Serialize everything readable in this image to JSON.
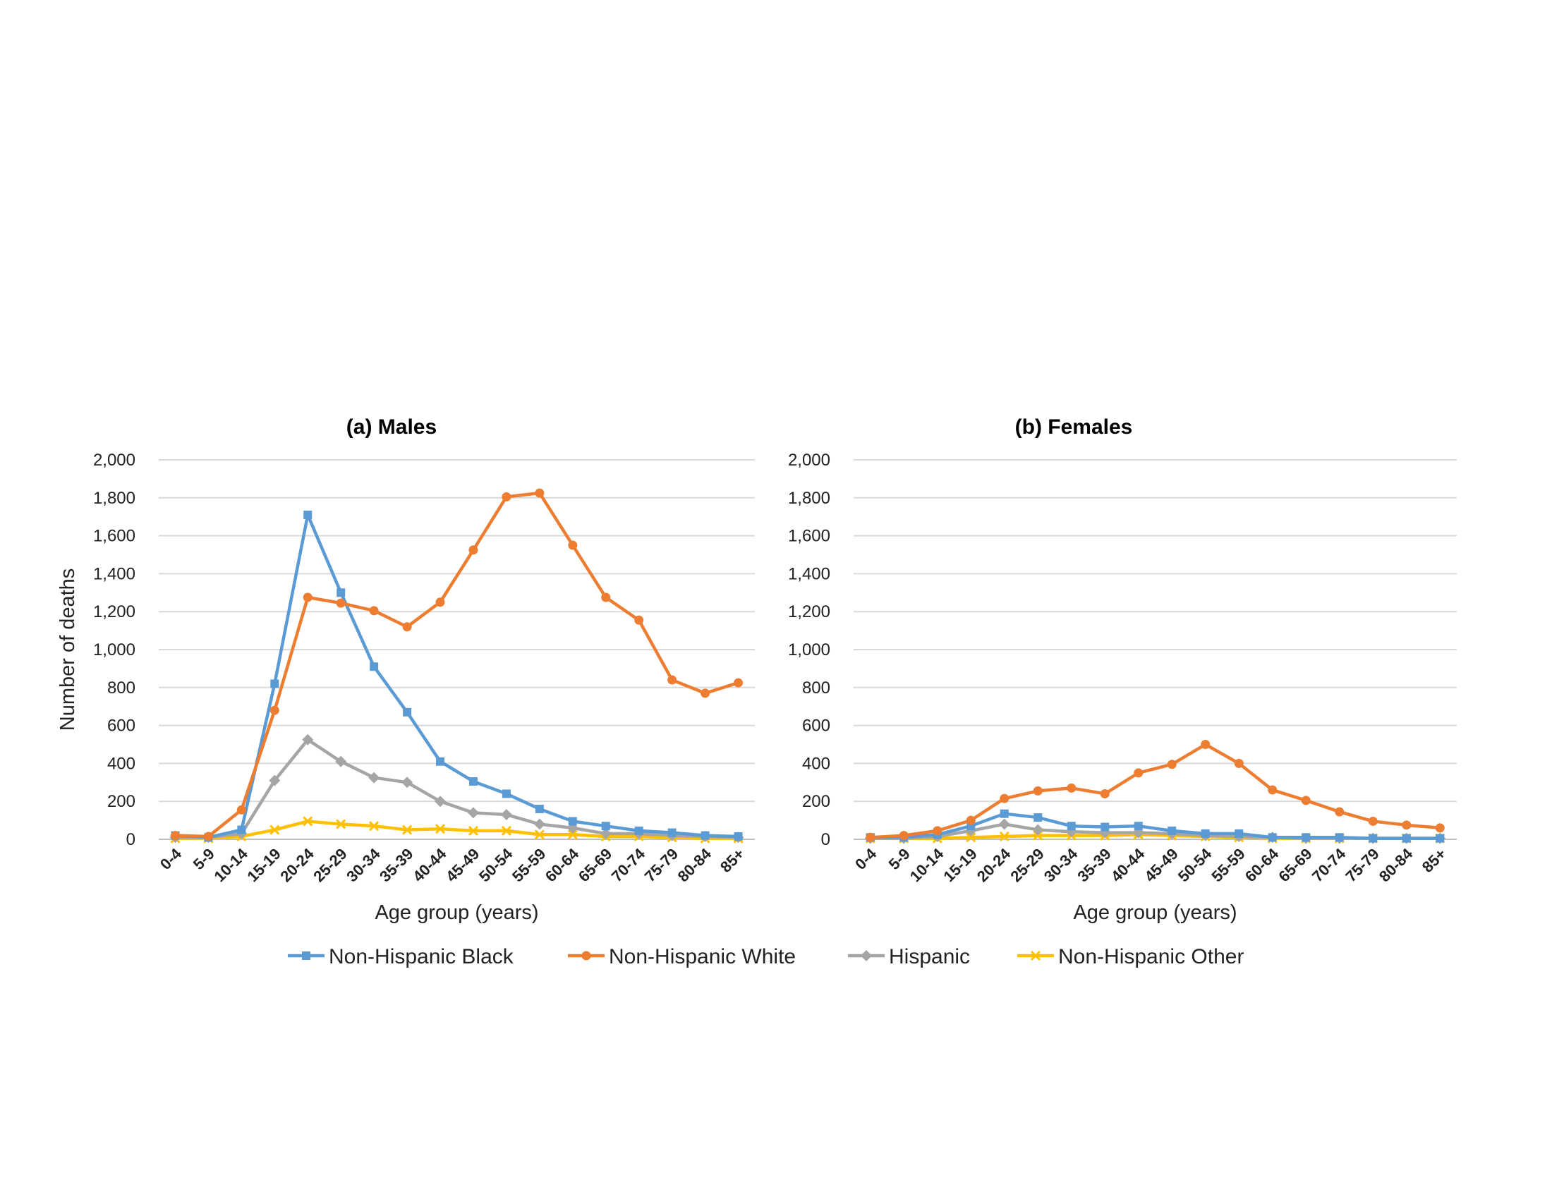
{
  "x_axis_title": "Age group (years)",
  "colors": {
    "Non-Hispanic Black": "#5b9bd5",
    "Non-Hispanic White": "#ed7d31",
    "Hispanic": "#a5a5a5",
    "Non-Hispanic Other": "#ffc000"
  },
  "markers": {
    "Non-Hispanic Black": "square",
    "Non-Hispanic White": "circle",
    "Hispanic": "diamond",
    "Non-Hispanic Other": "x"
  },
  "legend_position": "bottom",
  "chart_data": [
    {
      "type": "line",
      "title": "(a) Males",
      "xlabel": "Age group (years)",
      "ylabel": "Number of deaths",
      "ylim": [
        0,
        2000
      ],
      "yticks": [
        0,
        200,
        400,
        600,
        800,
        1000,
        1200,
        1400,
        1600,
        1800,
        2000
      ],
      "ytick_labels": [
        "0",
        "200",
        "400",
        "600",
        "800",
        "1,000",
        "1,200",
        "1,400",
        "1,600",
        "1,800",
        "2,000"
      ],
      "grid": true,
      "categories": [
        "0-4",
        "5-9",
        "10-14",
        "15-19",
        "20-24",
        "25-29",
        "30-34",
        "35-39",
        "40-44",
        "45-49",
        "50-54",
        "55-59",
        "60-64",
        "65-69",
        "70-74",
        "75-79",
        "80-84",
        "85+"
      ],
      "series": [
        {
          "name": "Non-Hispanic Black",
          "values": [
            20,
            10,
            50,
            820,
            1710,
            1300,
            910,
            670,
            410,
            305,
            240,
            160,
            95,
            70,
            45,
            35,
            20,
            15
          ]
        },
        {
          "name": "Non-Hispanic White",
          "values": [
            20,
            15,
            155,
            680,
            1275,
            1245,
            1205,
            1120,
            1250,
            1525,
            1805,
            1825,
            1550,
            1275,
            1155,
            840,
            770,
            825
          ]
        },
        {
          "name": "Hispanic",
          "values": [
            10,
            10,
            30,
            310,
            525,
            410,
            325,
            300,
            200,
            140,
            130,
            80,
            60,
            30,
            30,
            20,
            15,
            10
          ]
        },
        {
          "name": "Non-Hispanic Other",
          "values": [
            5,
            5,
            15,
            50,
            95,
            80,
            70,
            50,
            55,
            45,
            45,
            25,
            25,
            15,
            15,
            10,
            5,
            5
          ]
        }
      ]
    },
    {
      "type": "line",
      "title": "(b) Females",
      "xlabel": "Age group (years)",
      "ylabel": "",
      "ylim": [
        0,
        2000
      ],
      "yticks": [
        0,
        200,
        400,
        600,
        800,
        1000,
        1200,
        1400,
        1600,
        1800,
        2000
      ],
      "ytick_labels": [
        "0",
        "200",
        "400",
        "600",
        "800",
        "1,000",
        "1,200",
        "1,400",
        "1,600",
        "1,800",
        "2,000"
      ],
      "grid": true,
      "categories": [
        "0-4",
        "5-9",
        "10-14",
        "15-19",
        "20-24",
        "25-29",
        "30-34",
        "35-39",
        "40-44",
        "45-49",
        "50-54",
        "55-59",
        "60-64",
        "65-69",
        "70-74",
        "75-79",
        "80-84",
        "85+"
      ],
      "series": [
        {
          "name": "Non-Hispanic Black",
          "values": [
            10,
            10,
            25,
            70,
            135,
            115,
            70,
            65,
            70,
            45,
            30,
            30,
            10,
            10,
            10,
            5,
            5,
            5
          ]
        },
        {
          "name": "Non-Hispanic White",
          "values": [
            10,
            20,
            45,
            100,
            215,
            255,
            270,
            240,
            350,
            395,
            500,
            400,
            260,
            205,
            145,
            95,
            75,
            60
          ]
        },
        {
          "name": "Hispanic",
          "values": [
            5,
            5,
            15,
            45,
            80,
            50,
            40,
            35,
            35,
            30,
            20,
            15,
            10,
            5,
            5,
            5,
            5,
            5
          ]
        },
        {
          "name": "Non-Hispanic Other",
          "values": [
            5,
            5,
            5,
            10,
            15,
            20,
            20,
            20,
            25,
            20,
            15,
            10,
            5,
            5,
            5,
            5,
            5,
            5
          ]
        }
      ]
    }
  ]
}
